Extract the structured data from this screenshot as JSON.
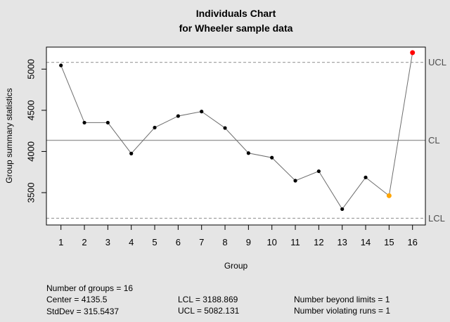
{
  "chart_data": {
    "type": "line",
    "chart_kind": "individuals-control-chart",
    "title": "Individuals Chart",
    "subtitle": "for Wheeler sample data",
    "xlabel": "Group",
    "ylabel": "Group summary statistics",
    "x": [
      1,
      2,
      3,
      4,
      5,
      6,
      7,
      8,
      9,
      10,
      11,
      12,
      13,
      14,
      15,
      16
    ],
    "values": [
      5045,
      4350,
      4350,
      3975,
      4290,
      4430,
      4485,
      4285,
      3980,
      3925,
      3645,
      3760,
      3300,
      3685,
      3463,
      5200
    ],
    "yticks": [
      3500,
      4000,
      4500,
      5000
    ],
    "ylim": [
      3107,
      5267
    ],
    "center": 4135.5,
    "ucl": 5082.131,
    "lcl": 3188.869,
    "points_beyond_limits": [
      16
    ],
    "points_violating_runs": [
      15
    ],
    "grid": false,
    "colors": {
      "background": "#E5E5E5",
      "plot_background": "#FFFFFF",
      "box_border": "#000000",
      "point": "#000000",
      "beyond_limit_point": "#FF0000",
      "violating_run_point": "#FFA500",
      "series_line": "#6E6E6E",
      "limit_line": "#999999",
      "center_line": "#999999",
      "limit_label_text": "#4D4D4D"
    }
  },
  "limit_labels": {
    "ucl": "UCL",
    "cl": "CL",
    "lcl": "LCL"
  },
  "stats": {
    "col1": [
      "Number of groups = 16",
      "Center = 4135.5",
      "StdDev = 315.5437"
    ],
    "col2": [
      "LCL = 3188.869",
      "UCL = 5082.131"
    ],
    "col3": [
      "Number beyond limits = 1",
      "Number violating runs = 1"
    ]
  }
}
